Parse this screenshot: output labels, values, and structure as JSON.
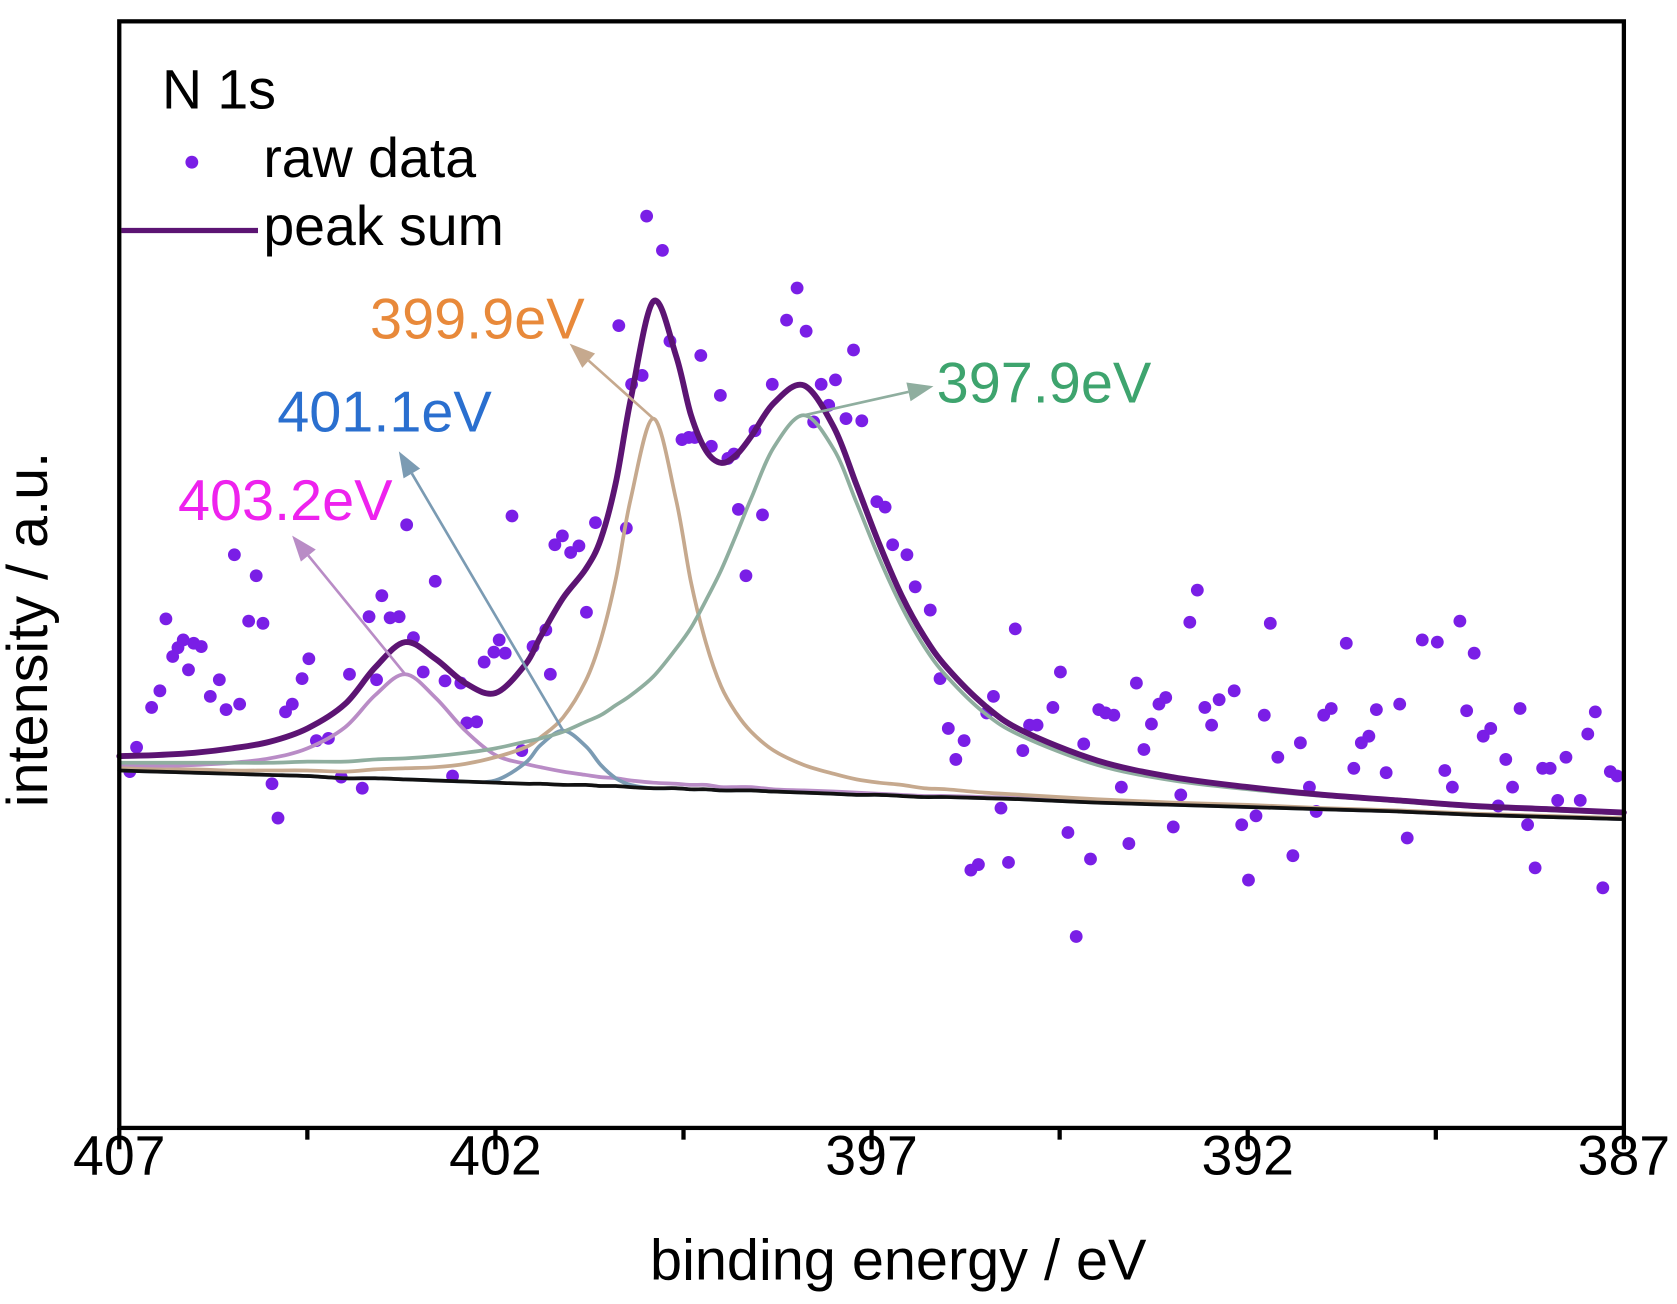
{
  "chart_data": {
    "type": "line",
    "title": "N 1s",
    "xlabel": "binding energy / eV",
    "ylabel": "intensity / a.u.",
    "xlim": [
      407,
      387
    ],
    "xticks": [
      407,
      402,
      397,
      392,
      387
    ],
    "xminor_ticks": [
      404.5,
      399.5,
      394.5,
      389.5
    ],
    "ylim": [
      0,
      100
    ],
    "x": [
      407,
      406.5,
      406,
      405.5,
      405,
      404.5,
      404,
      403.6,
      403.2,
      402.8,
      402.4,
      402,
      401.6,
      401.4,
      401.1,
      400.8,
      400.6,
      400.4,
      400.2,
      399.9,
      399.6,
      399.4,
      399.2,
      399,
      398.8,
      398.6,
      398.3,
      397.9,
      397.5,
      397.2,
      396.9,
      396.6,
      396.3,
      396,
      395.5,
      395,
      394,
      393,
      392,
      391,
      390,
      389,
      388,
      387
    ],
    "series": [
      {
        "name": "raw data",
        "type": "scatter",
        "color": "#7a1ee6",
        "x": [
          406.86,
          406.77,
          406.57,
          406.46,
          406.38,
          406.29,
          406.22,
          406.15,
          406.08,
          406.01,
          405.91,
          405.79,
          405.67,
          405.58,
          405.47,
          405.4,
          405.28,
          405.18,
          405.09,
          404.97,
          404.89,
          404.79,
          404.7,
          404.57,
          404.48,
          404.38,
          404.22,
          404.05,
          403.94,
          403.77,
          403.68,
          403.58,
          403.51,
          403.4,
          403.28,
          403.18,
          403.09,
          402.96,
          402.8,
          402.67,
          402.57,
          402.46,
          402.38,
          402.25,
          402.15,
          402.02,
          401.95,
          401.87,
          401.78,
          401.65,
          401.5,
          401.33,
          401.27,
          401.21,
          401.11,
          401.0,
          400.89,
          400.79,
          400.67,
          400.36,
          400.26,
          400.19,
          400.05,
          399.99,
          399.78,
          399.68,
          399.52,
          399.43,
          399.35,
          399.27,
          399.13,
          399.01,
          398.91,
          398.83,
          398.77,
          398.67,
          398.55,
          398.45,
          398.32,
          398.13,
          397.99,
          397.87,
          397.77,
          397.67,
          397.57,
          397.48,
          397.34,
          397.24,
          397.13,
          396.93,
          396.82,
          396.72,
          396.53,
          396.42,
          396.22,
          396.09,
          395.98,
          395.88,
          395.77,
          395.68,
          395.58,
          395.47,
          395.38,
          395.28,
          395.18,
          395.09,
          394.99,
          394.9,
          394.8,
          394.59,
          394.49,
          394.39,
          394.28,
          394.18,
          394.09,
          393.98,
          393.89,
          393.78,
          393.68,
          393.58,
          393.48,
          393.38,
          393.28,
          393.18,
          393.09,
          392.99,
          392.89,
          392.77,
          392.67,
          392.57,
          392.48,
          392.38,
          392.18,
          392.08,
          391.99,
          391.89,
          391.78,
          391.7,
          391.6,
          391.4,
          391.3,
          391.18,
          391.09,
          390.99,
          390.89,
          390.69,
          390.59,
          390.49,
          390.39,
          390.29,
          390.16,
          389.98,
          389.88,
          389.68,
          389.48,
          389.38,
          389.28,
          389.18,
          389.09,
          388.99,
          388.87,
          388.77,
          388.67,
          388.57,
          388.48,
          388.38,
          388.28,
          388.18,
          388.08,
          387.98,
          387.88,
          387.77,
          387.58,
          387.48,
          387.38,
          387.28,
          387.18,
          387.09
        ],
        "values": [
          32.2,
          34.4,
          38.0,
          39.5,
          46.0,
          42.6,
          43.4,
          44.1,
          41.4,
          43.8,
          43.5,
          39.0,
          40.5,
          37.8,
          51.8,
          38.3,
          45.8,
          49.9,
          45.6,
          31.1,
          28.0,
          37.6,
          38.3,
          40.6,
          42.4,
          35.0,
          35.2,
          31.7,
          41.0,
          30.7,
          46.2,
          40.5,
          48.1,
          46.1,
          46.2,
          54.5,
          44.3,
          41.2,
          49.4,
          40.4,
          31.8,
          40.2,
          36.6,
          36.7,
          42.1,
          43.0,
          44.1,
          42.9,
          55.3,
          34.1,
          43.5,
          45.0,
          41.0,
          52.7,
          53.5,
          52.0,
          52.6,
          46.6,
          54.7,
          72.5,
          54.2,
          67.2,
          68.0,
          82.4,
          79.3,
          71.1,
          62.2,
          62.4,
          62.4,
          69.8,
          61.6,
          66.2,
          60.5,
          60.9,
          55.9,
          49.9,
          63.0,
          55.4,
          67.2,
          73.0,
          75.9,
          72.0,
          63.8,
          67.2,
          65.3,
          67.6,
          64.1,
          70.3,
          63.9,
          56.6,
          56.1,
          52.7,
          51.8,
          48.9,
          46.8,
          40.6,
          36.1,
          33.3,
          35.0,
          23.3,
          23.8,
          37.5,
          39.0,
          28.9,
          24.0,
          45.1,
          34.1,
          36.4,
          36.4,
          38.0,
          41.2,
          26.7,
          17.3,
          34.7,
          24.3,
          37.8,
          37.5,
          37.3,
          30.8,
          25.7,
          40.2,
          34.2,
          36.5,
          38.3,
          38.9,
          27.2,
          30.1,
          45.7,
          48.6,
          38.0,
          36.4,
          38.7,
          39.5,
          27.4,
          22.4,
          28.2,
          37.3,
          45.6,
          33.5,
          24.6,
          34.8,
          30.8,
          28.6,
          37.3,
          37.9,
          43.8,
          32.5,
          34.8,
          35.4,
          37.8,
          32.1,
          38.3,
          26.2,
          44.1,
          43.9,
          32.3,
          30.8,
          45.8,
          37.7,
          42.9,
          35.4,
          36.1,
          29.1,
          33.3,
          30.8,
          37.9,
          27.4,
          23.5,
          32.5,
          32.5,
          29.6,
          33.5,
          29.6,
          35.6,
          37.6,
          21.7,
          32.2,
          31.8
        ]
      },
      {
        "label": "403.2eV",
        "color": "#b98cc6",
        "label_color": "#ee22ee",
        "values": [
          32.7,
          32.7,
          32.8,
          33.0,
          33.4,
          34.3,
          36.2,
          39.1,
          41.0,
          38.9,
          35.9,
          33.7,
          32.9,
          32.6,
          32.2,
          31.9,
          31.7,
          31.6,
          31.4,
          31.2,
          31.1,
          31.0,
          31.0,
          30.8,
          30.8,
          30.8,
          30.6,
          30.5,
          30.4,
          30.3,
          30.2,
          30.1,
          30.0,
          30.0,
          29.9,
          29.8,
          29.5,
          29.3,
          29.1,
          28.8,
          28.6,
          28.3,
          28.1,
          27.9
        ]
      },
      {
        "label": "401.1eV",
        "color": "#7b9bb3",
        "label_color": "#2a6fcf",
        "values": [
          32.3,
          32.2,
          32.1,
          32.0,
          31.9,
          31.8,
          31.6,
          31.6,
          31.5,
          31.4,
          31.3,
          31.4,
          33.0,
          34.6,
          35.9,
          34.5,
          32.8,
          31.6,
          31.0,
          30.7,
          30.7,
          30.6,
          30.6,
          30.5,
          30.5,
          30.5,
          30.4,
          30.3,
          30.2,
          30.1,
          30.1,
          30.0,
          29.9,
          29.9,
          29.8,
          29.7,
          29.4,
          29.2,
          29.0,
          28.8,
          28.6,
          28.3,
          28.1,
          27.9
        ]
      },
      {
        "label": "399.9eV",
        "color": "#c6a98e",
        "label_color": "#e8893a",
        "values": [
          32.5,
          32.4,
          32.4,
          32.3,
          32.3,
          32.3,
          32.2,
          32.4,
          32.5,
          32.6,
          32.9,
          33.5,
          34.4,
          35.3,
          37.1,
          40.4,
          44.1,
          49.6,
          56.9,
          64.1,
          56.8,
          49.3,
          43.8,
          39.9,
          37.5,
          35.8,
          34.1,
          32.8,
          32.0,
          31.5,
          31.2,
          31.0,
          30.7,
          30.6,
          30.3,
          30.1,
          29.7,
          29.4,
          29.2,
          28.9,
          28.7,
          28.4,
          28.2,
          28.0
        ]
      },
      {
        "label": "397.9eV",
        "color": "#8fae9f",
        "label_color": "#3ea46e",
        "values": [
          33.0,
          33.0,
          33.0,
          33.0,
          33.0,
          33.1,
          33.1,
          33.3,
          33.4,
          33.6,
          33.9,
          34.3,
          34.9,
          35.2,
          35.8,
          36.7,
          37.3,
          38.2,
          39.1,
          40.8,
          43.3,
          45.2,
          47.7,
          50.4,
          53.6,
          56.9,
          61.5,
          64.4,
          61.3,
          56.5,
          51.5,
          47.1,
          43.5,
          40.8,
          37.5,
          35.4,
          32.8,
          31.4,
          30.6,
          30.0,
          29.5,
          29.0,
          28.7,
          28.4
        ]
      },
      {
        "color": "#111111",
        "values": [
          32.3,
          32.2,
          32.1,
          32.0,
          31.9,
          31.8,
          31.6,
          31.6,
          31.5,
          31.4,
          31.3,
          31.2,
          31.1,
          31.1,
          31.0,
          31.0,
          30.9,
          30.9,
          30.8,
          30.7,
          30.7,
          30.6,
          30.6,
          30.5,
          30.5,
          30.5,
          30.4,
          30.3,
          30.2,
          30.1,
          30.1,
          30.0,
          29.9,
          29.9,
          29.8,
          29.7,
          29.4,
          29.2,
          29.0,
          28.8,
          28.6,
          28.3,
          28.1,
          27.9
        ]
      },
      {
        "name": "peak sum",
        "color": "#5c1473",
        "values": [
          33.6,
          33.7,
          33.9,
          34.3,
          34.9,
          36.1,
          38.3,
          41.6,
          43.9,
          42.4,
          40.2,
          39.3,
          41.9,
          44.4,
          47.9,
          50.5,
          53.2,
          58.3,
          65.9,
          74.7,
          69.8,
          64.4,
          61.2,
          60.1,
          60.8,
          62.5,
          65.5,
          67.1,
          63.3,
          58.1,
          52.8,
          48.1,
          44.4,
          41.6,
          38.2,
          35.9,
          33.2,
          31.7,
          30.8,
          30.1,
          29.6,
          29.1,
          28.8,
          28.5
        ]
      }
    ]
  }
}
